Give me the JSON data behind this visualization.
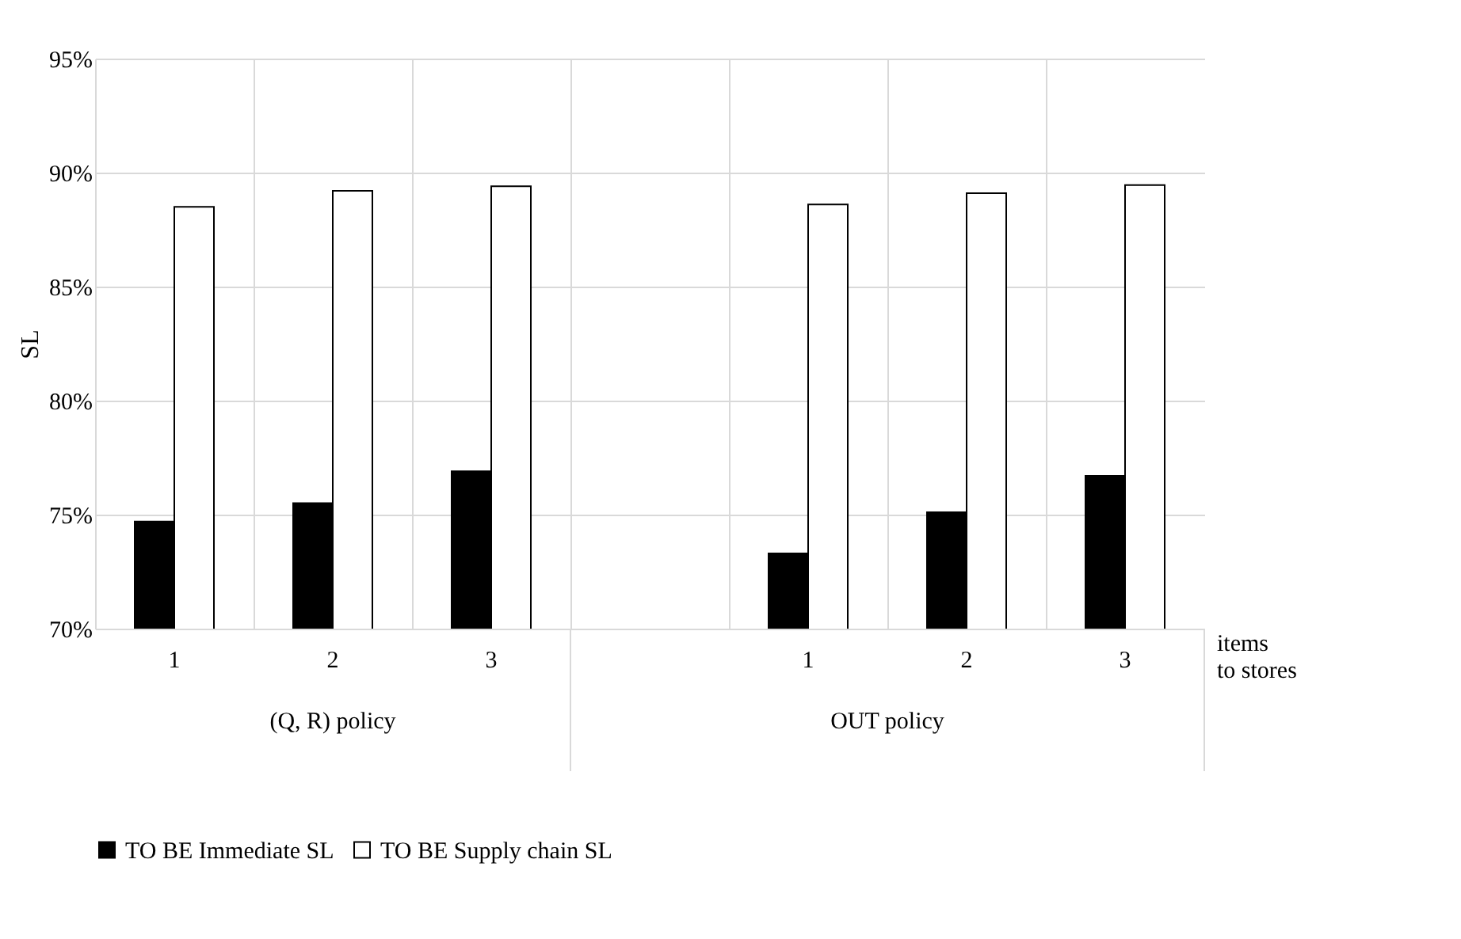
{
  "chart_data": {
    "type": "bar",
    "ylabel": "SL",
    "xlabel": "items\nto stores",
    "categories": [
      "1",
      "2",
      "3",
      null,
      "1",
      "2",
      "3"
    ],
    "series": [
      {
        "name": "TO BE Immediate SL",
        "color": "#000000",
        "values": [
          74.7,
          75.5,
          76.9,
          null,
          73.3,
          75.1,
          76.7
        ]
      },
      {
        "name": "TO BE Supply chain SL",
        "color": "#ffffff",
        "values": [
          88.5,
          89.2,
          89.4,
          null,
          88.6,
          89.1,
          89.45
        ]
      }
    ],
    "ylim": [
      70,
      95
    ],
    "yticks": [
      {
        "value": 70,
        "label": "70%"
      },
      {
        "value": 75,
        "label": "75%"
      },
      {
        "value": 80,
        "label": "80%"
      },
      {
        "value": 85,
        "label": "85%"
      },
      {
        "value": 90,
        "label": "90%"
      },
      {
        "value": 95,
        "label": "95%"
      }
    ],
    "annotations": [
      "(Q, R) policy",
      "OUT policy"
    ],
    "grid": true,
    "legend": "bottom"
  }
}
